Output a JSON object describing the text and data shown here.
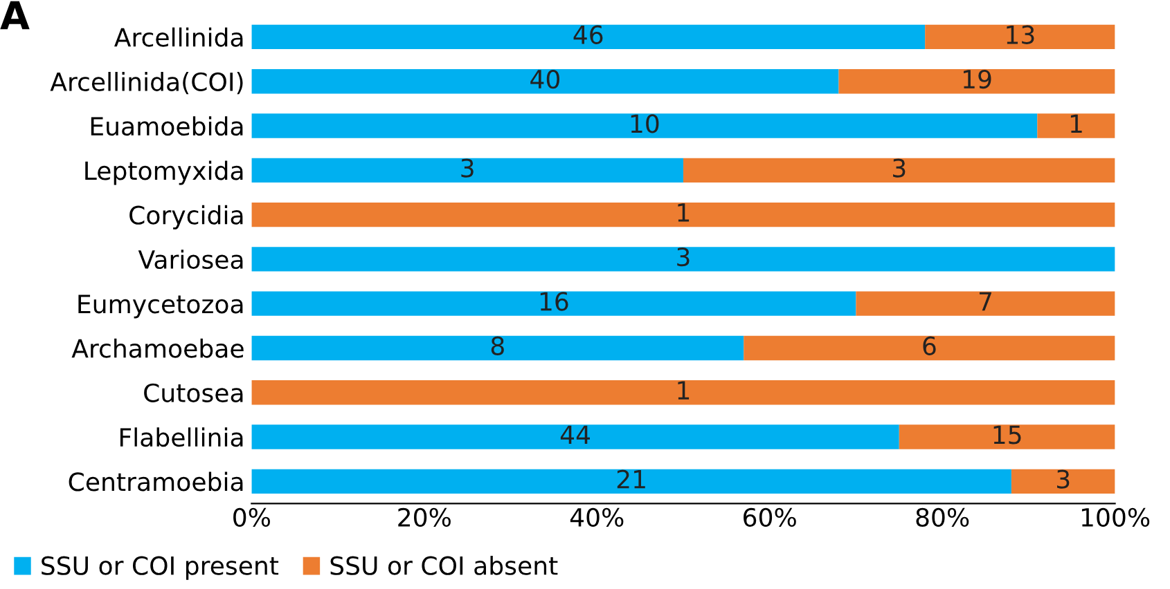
{
  "chart_data": {
    "type": "bar",
    "orientation": "horizontal",
    "stacked": true,
    "annotations": [
      "A",
      "46",
      "13",
      "40",
      "19",
      "10",
      "1",
      "3",
      "3",
      "1",
      "3",
      "16",
      "7",
      "8",
      "6",
      "1",
      "44",
      "15",
      "21",
      "3"
    ],
    "categories": [
      "Arcellinida",
      "Arcellinida(COI)",
      "Euamoebida",
      "Leptomyxida",
      "Corycidia",
      "Variosea",
      "Eumycetozoa",
      "Archamoebae",
      "Cutosea",
      "Flabellinia",
      "Centramoebia"
    ],
    "series": [
      {
        "name": "SSU or COI present",
        "color": "#00b0f0",
        "values": [
          78,
          68,
          91,
          50,
          0,
          100,
          70,
          57,
          0,
          75,
          88
        ]
      },
      {
        "name": "SSU or COI absent",
        "color": "#ed7d31",
        "values": [
          22,
          32,
          9,
          50,
          100,
          0,
          30,
          43,
          100,
          25,
          12
        ]
      }
    ],
    "xlim": [
      0,
      100
    ],
    "xticks": [
      {
        "value": 0,
        "label": "0%"
      },
      {
        "value": 20,
        "label": "20%"
      },
      {
        "value": 40,
        "label": "40%"
      },
      {
        "value": 60,
        "label": "60%"
      },
      {
        "value": 80,
        "label": "80%"
      },
      {
        "value": 100,
        "label": "100%"
      }
    ],
    "grid": false,
    "legend": "bottom"
  }
}
